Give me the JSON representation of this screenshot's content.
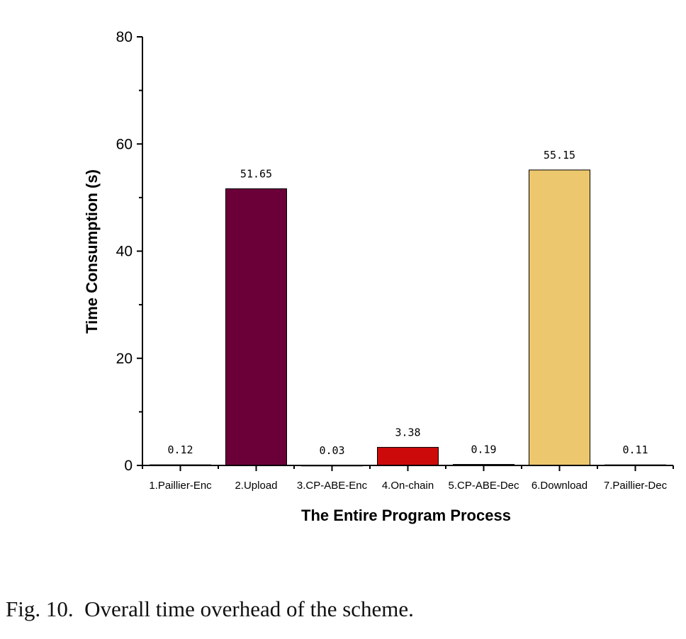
{
  "chart_data": {
    "type": "bar",
    "title": "",
    "xlabel": "The Entire Program Process",
    "ylabel": "Time Consumption (s)",
    "ylim": [
      0,
      80
    ],
    "yticks": [
      0,
      20,
      40,
      60,
      80
    ],
    "categories": [
      "1.Paillier-Enc",
      "2.Upload",
      "3.CP-ABE-Enc",
      "4.On-chain",
      "5.CP-ABE-Dec",
      "6.Download",
      "7.Paillier-Dec"
    ],
    "values": [
      0.12,
      51.65,
      0.03,
      3.38,
      0.19,
      55.15,
      0.11
    ],
    "value_labels": [
      "0.12",
      "51.65",
      "0.03",
      "3.38",
      "0.19",
      "55.15",
      "0.11"
    ],
    "colors": [
      "#5a0030",
      "#6b0039",
      "#333333",
      "#cc0a0a",
      "#333333",
      "#ecc76e",
      "#333333"
    ],
    "grid": false
  },
  "caption": "Fig. 10.  Overall time overhead of the scheme."
}
